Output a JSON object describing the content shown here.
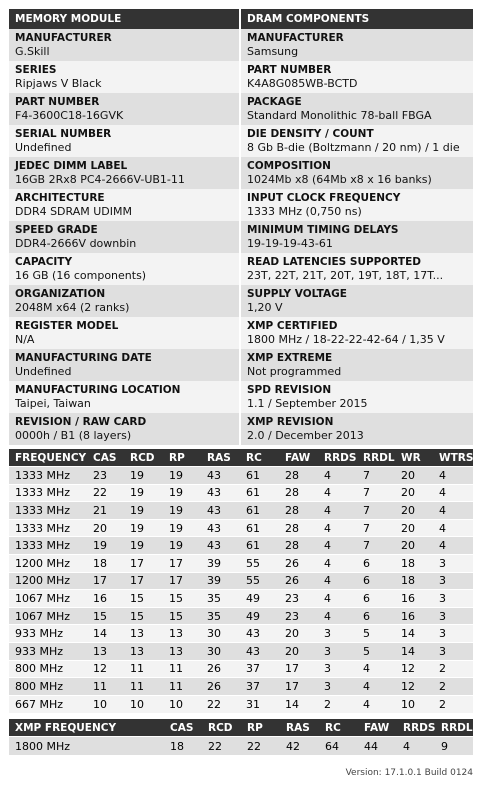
{
  "headers": {
    "left": "MEMORY MODULE",
    "right": "DRAM COMPONENTS"
  },
  "rows": [
    {
      "left": {
        "label": "MANUFACTURER",
        "value": "G.Skill"
      },
      "right": {
        "label": "MANUFACTURER",
        "value": "Samsung"
      }
    },
    {
      "left": {
        "label": "SERIES",
        "value": "Ripjaws V Black"
      },
      "right": {
        "label": "PART NUMBER",
        "value": "K4A8G085WB-BCTD"
      }
    },
    {
      "left": {
        "label": "PART NUMBER",
        "value": "F4-3600C18-16GVK"
      },
      "right": {
        "label": "PACKAGE",
        "value": "Standard Monolithic 78-ball FBGA"
      }
    },
    {
      "left": {
        "label": "SERIAL NUMBER",
        "value": "Undefined"
      },
      "right": {
        "label": "DIE DENSITY / COUNT",
        "value": "8 Gb B-die (Boltzmann / 20 nm) / 1 die"
      }
    },
    {
      "left": {
        "label": "JEDEC DIMM LABEL",
        "value": "16GB 2Rx8 PC4-2666V-UB1-11"
      },
      "right": {
        "label": "COMPOSITION",
        "value": "1024Mb x8 (64Mb x8 x 16 banks)"
      }
    },
    {
      "left": {
        "label": "ARCHITECTURE",
        "value": "DDR4 SDRAM UDIMM"
      },
      "right": {
        "label": "INPUT CLOCK FREQUENCY",
        "value": "1333 MHz (0,750 ns)"
      }
    },
    {
      "left": {
        "label": "SPEED GRADE",
        "value": "DDR4-2666V downbin"
      },
      "right": {
        "label": "MINIMUM TIMING DELAYS",
        "value": "19-19-19-43-61"
      }
    },
    {
      "left": {
        "label": "CAPACITY",
        "value": "16 GB (16 components)"
      },
      "right": {
        "label": "READ LATENCIES SUPPORTED",
        "value": "23T, 22T, 21T, 20T, 19T, 18T, 17T..."
      }
    },
    {
      "left": {
        "label": "ORGANIZATION",
        "value": "2048M x64 (2 ranks)"
      },
      "right": {
        "label": "SUPPLY VOLTAGE",
        "value": "1,20 V"
      }
    },
    {
      "left": {
        "label": "REGISTER MODEL",
        "value": "N/A"
      },
      "right": {
        "label": "XMP CERTIFIED",
        "value": "1800 MHz / 18-22-22-42-64 / 1,35 V"
      }
    },
    {
      "left": {
        "label": "MANUFACTURING DATE",
        "value": "Undefined"
      },
      "right": {
        "label": "XMP EXTREME",
        "value": "Not programmed"
      }
    },
    {
      "left": {
        "label": "MANUFACTURING LOCATION",
        "value": "Taipei, Taiwan"
      },
      "right": {
        "label": "SPD REVISION",
        "value": "1.1 / September 2015"
      }
    },
    {
      "left": {
        "label": "REVISION / RAW CARD",
        "value": "0000h / B1 (8 layers)"
      },
      "right": {
        "label": "XMP REVISION",
        "value": "2.0 / December 2013"
      }
    }
  ],
  "timing_table": {
    "columns": [
      "FREQUENCY",
      "CAS",
      "RCD",
      "RP",
      "RAS",
      "RC",
      "FAW",
      "RRDS",
      "RRDL",
      "WR",
      "WTRS"
    ],
    "rows": [
      [
        "1333 MHz",
        "23",
        "19",
        "19",
        "43",
        "61",
        "28",
        "4",
        "7",
        "20",
        "4"
      ],
      [
        "1333 MHz",
        "22",
        "19",
        "19",
        "43",
        "61",
        "28",
        "4",
        "7",
        "20",
        "4"
      ],
      [
        "1333 MHz",
        "21",
        "19",
        "19",
        "43",
        "61",
        "28",
        "4",
        "7",
        "20",
        "4"
      ],
      [
        "1333 MHz",
        "20",
        "19",
        "19",
        "43",
        "61",
        "28",
        "4",
        "7",
        "20",
        "4"
      ],
      [
        "1333 MHz",
        "19",
        "19",
        "19",
        "43",
        "61",
        "28",
        "4",
        "7",
        "20",
        "4"
      ],
      [
        "1200 MHz",
        "18",
        "17",
        "17",
        "39",
        "55",
        "26",
        "4",
        "6",
        "18",
        "3"
      ],
      [
        "1200 MHz",
        "17",
        "17",
        "17",
        "39",
        "55",
        "26",
        "4",
        "6",
        "18",
        "3"
      ],
      [
        "1067 MHz",
        "16",
        "15",
        "15",
        "35",
        "49",
        "23",
        "4",
        "6",
        "16",
        "3"
      ],
      [
        "1067 MHz",
        "15",
        "15",
        "15",
        "35",
        "49",
        "23",
        "4",
        "6",
        "16",
        "3"
      ],
      [
        "933 MHz",
        "14",
        "13",
        "13",
        "30",
        "43",
        "20",
        "3",
        "5",
        "14",
        "3"
      ],
      [
        "933 MHz",
        "13",
        "13",
        "13",
        "30",
        "43",
        "20",
        "3",
        "5",
        "14",
        "3"
      ],
      [
        "800 MHz",
        "12",
        "11",
        "11",
        "26",
        "37",
        "17",
        "3",
        "4",
        "12",
        "2"
      ],
      [
        "800 MHz",
        "11",
        "11",
        "11",
        "26",
        "37",
        "17",
        "3",
        "4",
        "12",
        "2"
      ],
      [
        "667 MHz",
        "10",
        "10",
        "10",
        "22",
        "31",
        "14",
        "2",
        "4",
        "10",
        "2"
      ]
    ]
  },
  "xmp_table": {
    "columns": [
      "XMP FREQUENCY",
      "",
      "CAS",
      "RCD",
      "RP",
      "RAS",
      "RC",
      "FAW",
      "RRDS",
      "RRDL"
    ],
    "row": [
      "1800 MHz",
      "",
      "18",
      "22",
      "22",
      "42",
      "64",
      "44",
      "4",
      "9"
    ]
  },
  "version": "Version: 17.1.0.1 Build 0124"
}
